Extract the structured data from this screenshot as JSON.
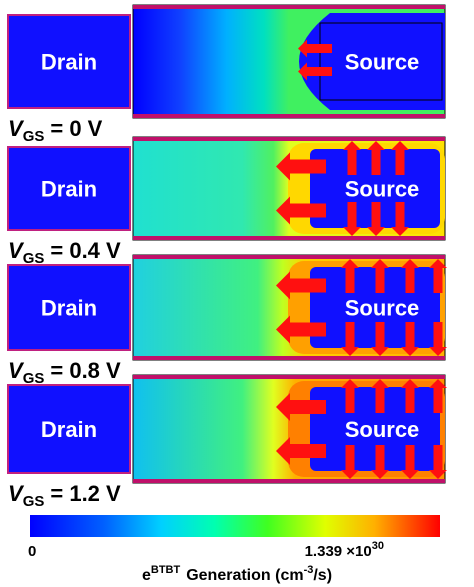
{
  "panels": [
    {
      "drain": "Drain",
      "source": "Source",
      "vgs": {
        "symbol": "V",
        "subscript": "GS",
        "value": "= 0 V"
      }
    },
    {
      "drain": "Drain",
      "source": "Source",
      "vgs": {
        "symbol": "V",
        "subscript": "GS",
        "value": "= 0.4 V"
      }
    },
    {
      "drain": "Drain",
      "source": "Source",
      "vgs": {
        "symbol": "V",
        "subscript": "GS",
        "value": "= 0.8 V"
      }
    },
    {
      "drain": "Drain",
      "source": "Source",
      "vgs": {
        "symbol": "V",
        "subscript": "GS",
        "value": "= 1.2 V"
      }
    }
  ],
  "colorbar": {
    "min_label": "0",
    "max_label": "1.339 ×10",
    "max_exponent": "30",
    "title": {
      "base": "e",
      "superscript": "BTBT",
      "text": "Generation (cm",
      "unit_superscript": "-3",
      "unit_end": "/s)"
    }
  }
}
